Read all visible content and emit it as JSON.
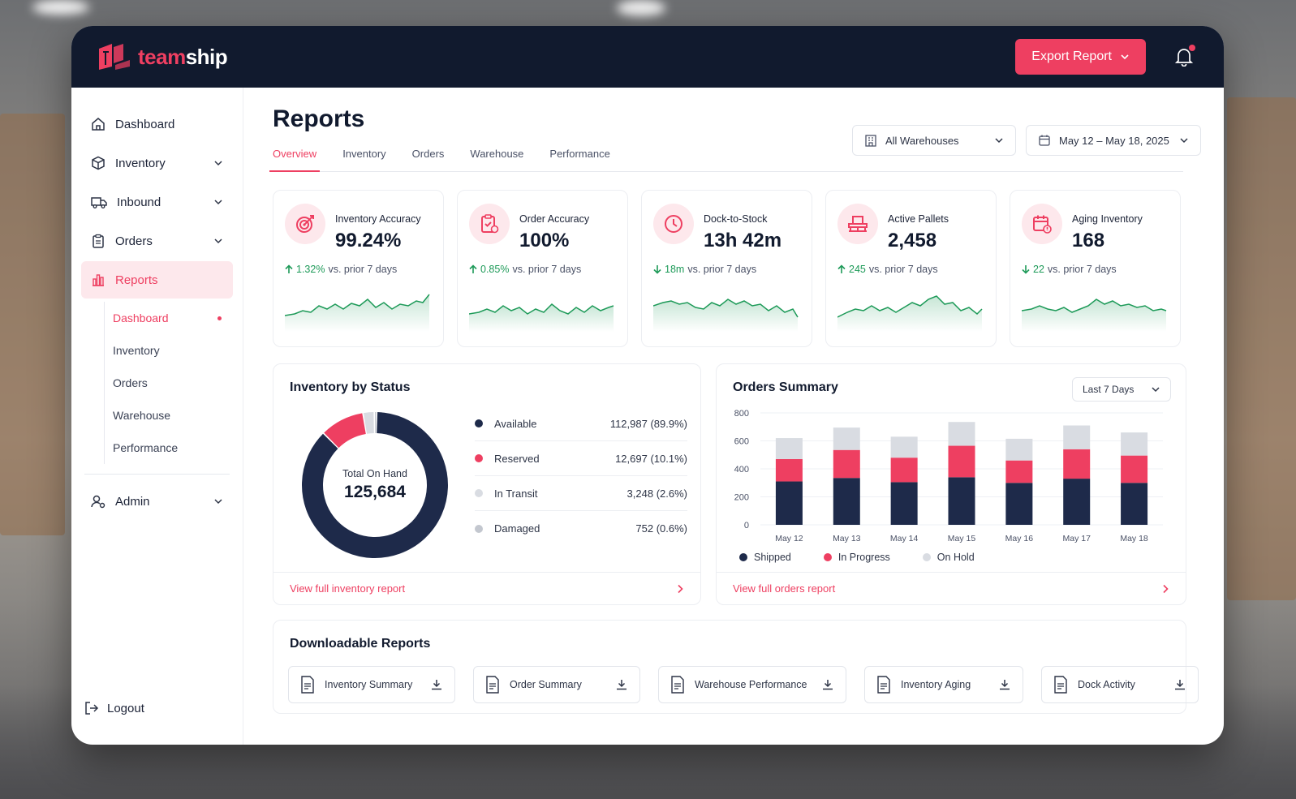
{
  "brand": {
    "part1": "team",
    "part2": "ship"
  },
  "topbar": {
    "export_label": "Export Report"
  },
  "sidebar": {
    "items": [
      {
        "label": "Dashboard",
        "icon": "home-icon"
      },
      {
        "label": "Inventory",
        "icon": "box-icon"
      },
      {
        "label": "Inbound",
        "icon": "truck-icon"
      },
      {
        "label": "Orders",
        "icon": "clipboard-icon"
      },
      {
        "label": "Reports",
        "icon": "chart-icon"
      }
    ],
    "sub_items": [
      "Dashboard",
      "Inventory",
      "Orders",
      "Warehouse",
      "Performance"
    ],
    "admin_label": "Admin",
    "logout_label": "Logout"
  },
  "page": {
    "title": "Reports",
    "tabs": [
      "Overview",
      "Inventory",
      "Orders",
      "Warehouse",
      "Performance"
    ],
    "warehouse_filter": "All Warehouses",
    "date_filter": "May 12 – May 18, 2025"
  },
  "kpis": [
    {
      "label": "Inventory Accuracy",
      "value": "99.24%",
      "delta": "1.32%",
      "direction": "up",
      "suffix": "vs. prior 7 days",
      "icon": "target-icon"
    },
    {
      "label": "Order Accuracy",
      "value": "100%",
      "delta": "0.85%",
      "direction": "up",
      "suffix": "vs. prior 7 days",
      "icon": "clipboard-check-icon"
    },
    {
      "label": "Dock-to-Stock",
      "value": "13h 42m",
      "delta": "18m",
      "direction": "down",
      "suffix": "vs. prior 7 days",
      "icon": "clock-icon"
    },
    {
      "label": "Active Pallets",
      "value": "2,458",
      "delta": "245",
      "direction": "up",
      "suffix": "vs. prior 7 days",
      "icon": "pallet-icon"
    },
    {
      "label": "Aging Inventory",
      "value": "168",
      "delta": "22",
      "direction": "down",
      "suffix": "vs. prior 7 days",
      "icon": "calendar-alert-icon"
    }
  ],
  "inventory_status": {
    "title": "Inventory by Status",
    "center_caption": "Total On Hand",
    "center_value": "125,684",
    "rows": [
      {
        "name": "Available",
        "value": "112,987",
        "pct": "(89.9%)",
        "color": "#1e2a4a"
      },
      {
        "name": "Reserved",
        "value": "12,697",
        "pct": "(10.1%)",
        "color": "#ee3f61"
      },
      {
        "name": "In Transit",
        "value": "3,248",
        "pct": "(2.6%)",
        "color": "#d9dce2"
      },
      {
        "name": "Damaged",
        "value": "752",
        "pct": "(0.6%)",
        "color": "#c3c7cf"
      }
    ],
    "footer": "View full inventory report"
  },
  "orders_summary": {
    "title": "Orders Summary",
    "range": "Last 7 Days",
    "footer": "View full orders report"
  },
  "chart_data": {
    "type": "bar",
    "stacked": true,
    "categories": [
      "May 12",
      "May 13",
      "May 14",
      "May 15",
      "May 16",
      "May 17",
      "May 18"
    ],
    "series": [
      {
        "name": "Shipped",
        "values": [
          310,
          335,
          305,
          340,
          300,
          330,
          300
        ],
        "color": "#1e2a4a"
      },
      {
        "name": "In Progress",
        "values": [
          160,
          200,
          175,
          225,
          160,
          210,
          195
        ],
        "color": "#ee3f61"
      },
      {
        "name": "On Hold",
        "values": [
          150,
          160,
          150,
          170,
          155,
          170,
          165
        ],
        "color": "#d9dce2"
      }
    ],
    "yticks": [
      0,
      200,
      400,
      600,
      800
    ],
    "ylim": [
      0,
      800
    ],
    "grid": true,
    "legend": "bottom"
  },
  "downloads": {
    "title": "Downloadable Reports",
    "items": [
      "Inventory Summary",
      "Order Summary",
      "Warehouse Performance",
      "Inventory Aging",
      "Dock Activity"
    ]
  }
}
